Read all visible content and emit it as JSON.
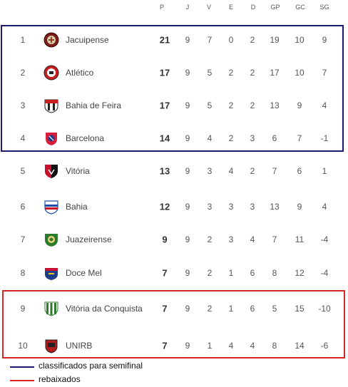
{
  "table": {
    "columns": [
      "P",
      "J",
      "V",
      "E",
      "D",
      "GP",
      "GC",
      "SG"
    ],
    "rows": [
      {
        "pos": "1",
        "team": "Jacuipense",
        "crest": "jacuipense-crest-icon",
        "p": "21",
        "j": "9",
        "v": "7",
        "e": "0",
        "d": "2",
        "gp": "19",
        "gc": "10",
        "sg": "9"
      },
      {
        "pos": "2",
        "team": "Atlético",
        "crest": "atletico-crest-icon",
        "p": "17",
        "j": "9",
        "v": "5",
        "e": "2",
        "d": "2",
        "gp": "17",
        "gc": "10",
        "sg": "7"
      },
      {
        "pos": "3",
        "team": "Bahia de Feira",
        "crest": "bahia-de-feira-crest-icon",
        "p": "17",
        "j": "9",
        "v": "5",
        "e": "2",
        "d": "2",
        "gp": "13",
        "gc": "9",
        "sg": "4"
      },
      {
        "pos": "4",
        "team": "Barcelona",
        "crest": "barcelona-crest-icon",
        "p": "14",
        "j": "9",
        "v": "4",
        "e": "2",
        "d": "3",
        "gp": "6",
        "gc": "7",
        "sg": "-1"
      },
      {
        "pos": "5",
        "team": "Vitória",
        "crest": "vitoria-crest-icon",
        "p": "13",
        "j": "9",
        "v": "3",
        "e": "4",
        "d": "2",
        "gp": "7",
        "gc": "6",
        "sg": "1"
      },
      {
        "pos": "6",
        "team": "Bahia",
        "crest": "bahia-crest-icon",
        "p": "12",
        "j": "9",
        "v": "3",
        "e": "3",
        "d": "3",
        "gp": "13",
        "gc": "9",
        "sg": "4"
      },
      {
        "pos": "7",
        "team": "Juazeirense",
        "crest": "juazeirense-crest-icon",
        "p": "9",
        "j": "9",
        "v": "2",
        "e": "3",
        "d": "4",
        "gp": "7",
        "gc": "11",
        "sg": "-4"
      },
      {
        "pos": "8",
        "team": "Doce Mel",
        "crest": "doce-mel-crest-icon",
        "p": "7",
        "j": "9",
        "v": "2",
        "e": "1",
        "d": "6",
        "gp": "8",
        "gc": "12",
        "sg": "-4"
      },
      {
        "pos": "9",
        "team": "Vitória da Conquista",
        "crest": "vitoria-da-conquista-crest-icon",
        "p": "7",
        "j": "9",
        "v": "2",
        "e": "1",
        "d": "6",
        "gp": "5",
        "gc": "15",
        "sg": "-10"
      },
      {
        "pos": "10",
        "team": "UNIRB",
        "crest": "unirb-crest-icon",
        "p": "7",
        "j": "9",
        "v": "1",
        "e": "4",
        "d": "4",
        "gp": "8",
        "gc": "14",
        "sg": "-6"
      }
    ]
  },
  "legend": {
    "qualified": {
      "label": "classificados para semifinal",
      "color": "#1a1a6e"
    },
    "relegated": {
      "label": "rebaixados",
      "color": "#d62828"
    }
  }
}
